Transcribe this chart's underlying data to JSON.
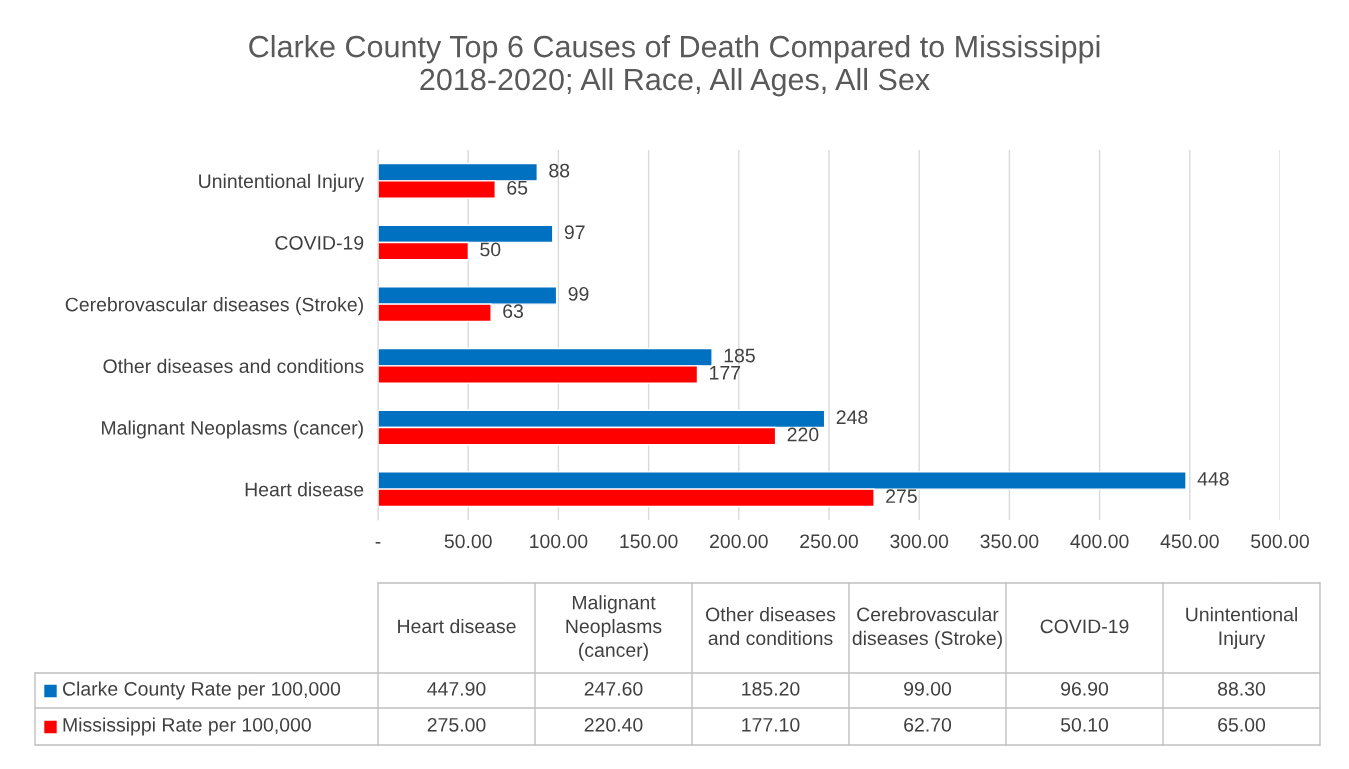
{
  "chart_data": {
    "type": "bar",
    "orientation": "horizontal",
    "title": "Clarke County Top 6 Causes of Death Compared to Mississippi\n2018-2020; All Race, All Ages, All Sex",
    "categories": [
      "Unintentional Injury",
      "COVID-19",
      "Cerebrovascular diseases (Stroke)",
      "Other diseases and conditions",
      "Malignant Neoplasms (cancer)",
      "Heart disease"
    ],
    "series": [
      {
        "name": "Clarke County Rate per 100,000",
        "color": "#0070c0",
        "values": [
          88.3,
          96.9,
          99.0,
          185.2,
          247.6,
          447.9
        ],
        "value_labels": [
          "88",
          "97",
          "99",
          "185",
          "248",
          "448"
        ]
      },
      {
        "name": "Mississippi Rate per 100,000",
        "color": "#ff0000",
        "values": [
          65.0,
          50.1,
          62.7,
          177.1,
          220.4,
          275.0
        ],
        "value_labels": [
          "65",
          "50",
          "63",
          "177",
          "220",
          "275"
        ]
      }
    ],
    "xlim": [
      0,
      500
    ],
    "xticks": [
      {
        "value": 0,
        "label": "-"
      },
      {
        "value": 50,
        "label": "50.00"
      },
      {
        "value": 100,
        "label": "100.00"
      },
      {
        "value": 150,
        "label": "150.00"
      },
      {
        "value": 200,
        "label": "200.00"
      },
      {
        "value": 250,
        "label": "250.00"
      },
      {
        "value": 300,
        "label": "300.00"
      },
      {
        "value": 350,
        "label": "350.00"
      },
      {
        "value": 400,
        "label": "400.00"
      },
      {
        "value": 450,
        "label": "450.00"
      },
      {
        "value": 500,
        "label": "500.00"
      }
    ],
    "annotations": [
      "447.90",
      "247.60",
      "185.20",
      "99.00",
      "96.90",
      "88.30",
      "275.00",
      "220.40",
      "177.10",
      "62.70",
      "50.10",
      "65.00"
    ],
    "grid": "x",
    "legend": "bottom",
    "data_labels": true
  }
}
